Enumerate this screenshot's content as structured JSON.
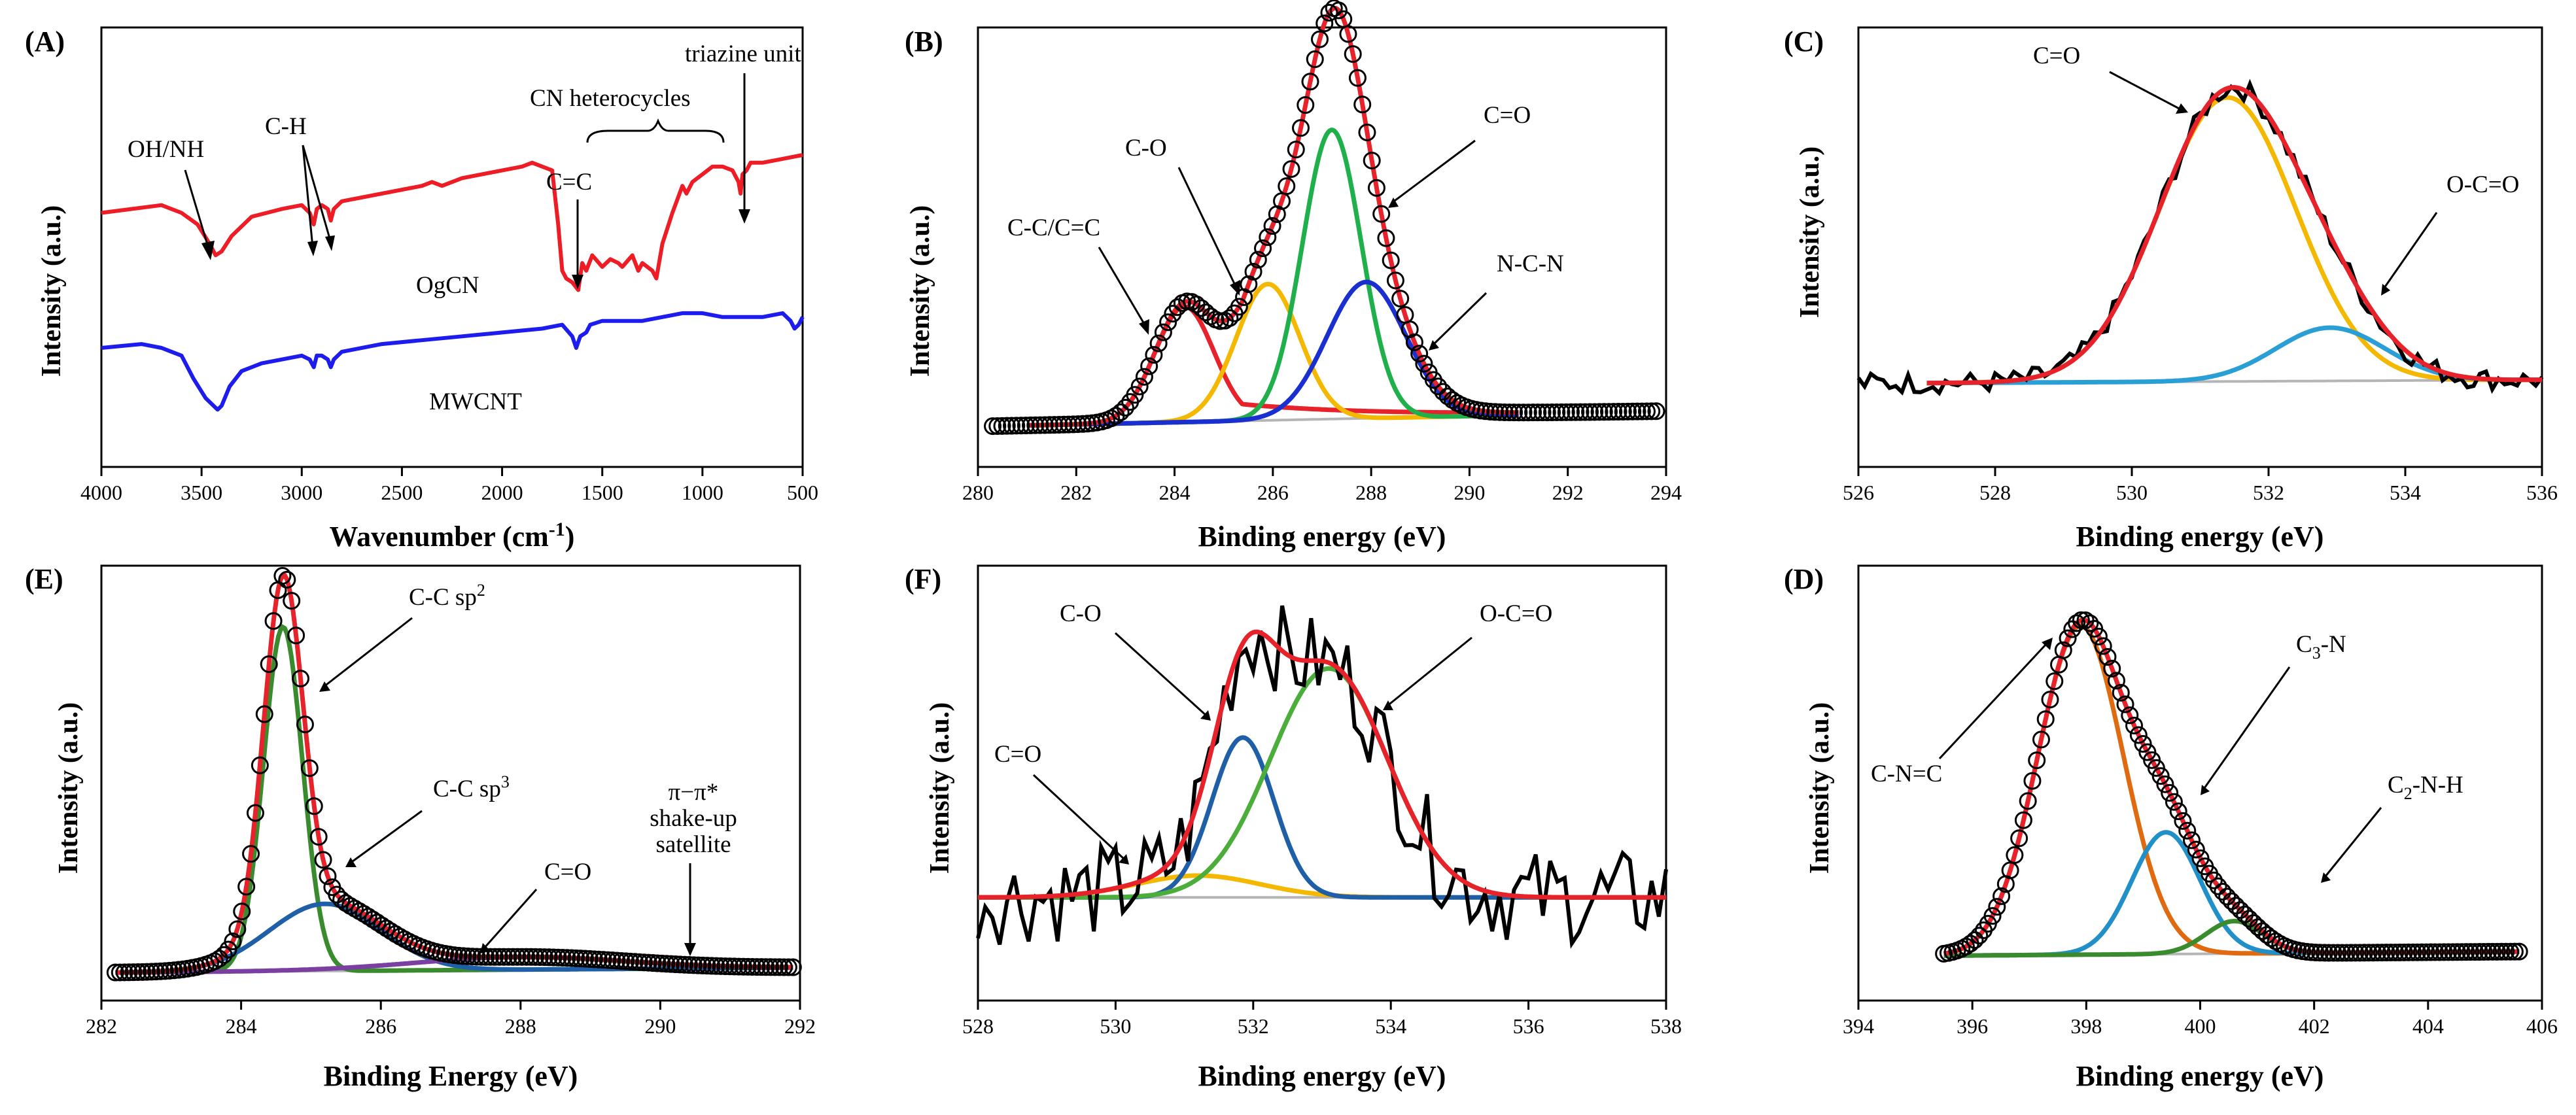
{
  "chart_data": [
    {
      "id": "A",
      "panel_label": "(A)",
      "type": "line",
      "title": "",
      "xlabel": "Wavenumber (cm",
      "xlabel_sup": "-1",
      "xlabel_end": ")",
      "ylabel": "Intensity (a.u.)",
      "xlim": [
        4000,
        500
      ],
      "ylim": [
        0,
        100
      ],
      "xticks": [
        4000,
        3500,
        3000,
        2500,
        2000,
        1500,
        1000,
        500
      ],
      "series": [
        {
          "name": "OgCN",
          "color": "#ee1c24",
          "x": [
            4000,
            3700,
            3600,
            3520,
            3460,
            3430,
            3400,
            3350,
            3250,
            3100,
            3000,
            2960,
            2940,
            2925,
            2900,
            2870,
            2855,
            2840,
            2800,
            2600,
            2400,
            2350,
            2300,
            2200,
            2000,
            1900,
            1850,
            1800,
            1750,
            1720,
            1700,
            1680,
            1650,
            1620,
            1600,
            1580,
            1550,
            1500,
            1460,
            1420,
            1400,
            1350,
            1320,
            1300,
            1250,
            1230,
            1200,
            1150,
            1100,
            1080,
            1050,
            1000,
            950,
            900,
            850,
            820,
            810,
            800,
            780,
            760,
            700,
            600,
            500
          ],
          "y": [
            55,
            57,
            55,
            52,
            47,
            44,
            45,
            49,
            54,
            56,
            57,
            55,
            52,
            56,
            57,
            56,
            53,
            56,
            58,
            60,
            62,
            63,
            62,
            64,
            66,
            67,
            68,
            67,
            66,
            52,
            40,
            38,
            37,
            35,
            42,
            40,
            44,
            41,
            43,
            42,
            41,
            44,
            40,
            42,
            40,
            38,
            47,
            55,
            62,
            60,
            63,
            65,
            67,
            67,
            66,
            63,
            60,
            65,
            66,
            68,
            68,
            69,
            70
          ]
        },
        {
          "name": "MWCNT",
          "color": "#1c1cee",
          "x": [
            4000,
            3800,
            3700,
            3600,
            3540,
            3480,
            3440,
            3420,
            3400,
            3360,
            3300,
            3200,
            3100,
            3000,
            2960,
            2940,
            2925,
            2900,
            2870,
            2855,
            2840,
            2800,
            2600,
            2400,
            2200,
            2000,
            1800,
            1700,
            1650,
            1630,
            1610,
            1580,
            1560,
            1500,
            1400,
            1300,
            1200,
            1100,
            1000,
            900,
            800,
            700,
            600,
            560,
            540,
            520,
            500
          ],
          "y": [
            20,
            21,
            20,
            18,
            12,
            7,
            5,
            4,
            5,
            10,
            14,
            16,
            17,
            18,
            17,
            15,
            18,
            18,
            17,
            15,
            17,
            19,
            21,
            22,
            23,
            24,
            25,
            26,
            23,
            20,
            23,
            24,
            26,
            27,
            27,
            27,
            28,
            29,
            29,
            28,
            28,
            28,
            29,
            27,
            25,
            26,
            28
          ]
        }
      ],
      "annotations": [
        "OH/NH",
        "C-H",
        "C=C",
        "CN heterocycles",
        "triazine unit",
        "OgCN",
        "MWCNT"
      ]
    },
    {
      "id": "B",
      "panel_label": "(B)",
      "type": "line",
      "xlabel": "Binding energy (eV)",
      "ylabel": "Intensity (a.u.)",
      "xlim": [
        280,
        294
      ],
      "ylim": [
        0,
        100
      ],
      "xticks": [
        280,
        282,
        284,
        286,
        288,
        290,
        292,
        294
      ],
      "background": 1.5,
      "peaks": [
        {
          "name": "C-C/C=C",
          "color": "#e8222a",
          "center": 284.2,
          "height": 28,
          "sigma": 0.6,
          "tail": 6
        },
        {
          "name": "C-O",
          "color": "#f5b800",
          "center": 285.9,
          "height": 33,
          "sigma": 0.65
        },
        {
          "name": "C=O",
          "color": "#20b04b",
          "center": 287.2,
          "height": 70,
          "sigma": 0.6
        },
        {
          "name": "N-C-N",
          "color": "#1a2fd0",
          "center": 287.9,
          "height": 33,
          "sigma": 0.8
        }
      ],
      "annotations": [
        "C-C/C=C",
        "C-O",
        "C=O",
        "N-C-N"
      ]
    },
    {
      "id": "C",
      "panel_label": "(C)",
      "type": "line",
      "xlabel": "Binding energy (eV)",
      "ylabel": "Intensity (a.u.)",
      "xlim": [
        526,
        536
      ],
      "ylim": [
        0,
        100
      ],
      "xticks": [
        526,
        528,
        530,
        532,
        534,
        536
      ],
      "background": 10,
      "peaks": [
        {
          "name": "C=O",
          "color": "#f5b800",
          "center": 531.4,
          "height": 80,
          "sigma": 1.0
        },
        {
          "name": "O-C=O",
          "color": "#2a9fd6",
          "center": 532.9,
          "height": 15,
          "sigma": 0.8
        }
      ],
      "annotations": [
        "C=O",
        "O-C=O"
      ]
    },
    {
      "id": "E",
      "panel_label": "(E)",
      "type": "line",
      "xlabel": "Binding Energy (eV)",
      "ylabel": "Intensity (a.u.)",
      "xlim": [
        282,
        292
      ],
      "ylim": [
        0,
        100
      ],
      "xticks": [
        282,
        284,
        286,
        288,
        290,
        292
      ],
      "background": 2,
      "peaks": [
        {
          "name": "C-C sp2",
          "color": "#3a8a2e",
          "center": 284.6,
          "height": 82,
          "sigma": 0.28
        },
        {
          "name": "C-C sp3",
          "color": "#1f5fa8",
          "center": 285.2,
          "height": 16,
          "sigma": 0.8
        },
        {
          "name": "C=O",
          "color": "#7a3fa0",
          "center": 288.0,
          "height": 3,
          "sigma": 1.5
        }
      ],
      "annotations": [
        "C-C sp",
        "2",
        "C-C sp",
        "3",
        "C=O",
        "π−π*",
        "shake-up",
        "satellite"
      ]
    },
    {
      "id": "F",
      "panel_label": "(F)",
      "type": "line",
      "xlabel": "Binding energy (eV)",
      "ylabel": "Intensity (a.u.)",
      "xlim": [
        528,
        538
      ],
      "ylim": [
        0,
        100
      ],
      "xticks": [
        528,
        530,
        532,
        534,
        536,
        538
      ],
      "background": 14,
      "peaks": [
        {
          "name": "C=O",
          "color": "#f5b800",
          "center": 531.2,
          "height": 6,
          "sigma": 0.9
        },
        {
          "name": "C-O",
          "color": "#1f5fa8",
          "center": 531.85,
          "height": 44,
          "sigma": 0.45
        },
        {
          "name": "O-C=O",
          "color": "#4cae3a",
          "center": 533.1,
          "height": 63,
          "sigma": 0.85
        }
      ],
      "annotations": [
        "C=O",
        "C-O",
        "O-C=O"
      ]
    },
    {
      "id": "D",
      "panel_label": "(D)",
      "type": "line",
      "xlabel": "Binding energy (eV)",
      "ylabel": "Intensity (a.u.)",
      "xlim": [
        394,
        406
      ],
      "ylim": [
        0,
        100
      ],
      "xticks": [
        394,
        396,
        398,
        400,
        402,
        404,
        406
      ],
      "background": 3,
      "peaks": [
        {
          "name": "C-N=C",
          "color": "#e06a10",
          "center": 397.9,
          "height": 81,
          "sigma": 0.75
        },
        {
          "name": "C3-N",
          "color": "#2290c8",
          "center": 399.4,
          "height": 30,
          "sigma": 0.6
        },
        {
          "name": "C2-N-H",
          "color": "#3a8a2e",
          "center": 400.6,
          "height": 8,
          "sigma": 0.5
        }
      ],
      "annotations": [
        "C-N=C",
        "C",
        "3",
        "-N",
        "C",
        "2",
        "-N-H"
      ]
    }
  ]
}
